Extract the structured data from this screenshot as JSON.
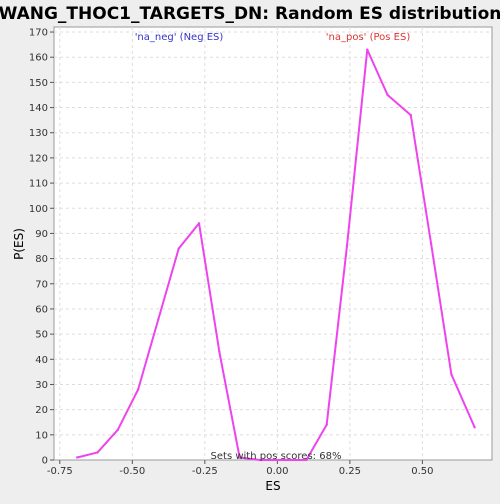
{
  "chart_data": {
    "type": "line",
    "title": "WANG_THOC1_TARGETS_DN: Random ES distribution",
    "xlabel": "ES",
    "ylabel": "P(ES)",
    "xlim": [
      -0.77,
      0.74
    ],
    "ylim": [
      0,
      172
    ],
    "x_ticks": [
      -0.75,
      -0.5,
      -0.25,
      0.0,
      0.25,
      0.5
    ],
    "x_tick_labels": [
      "-0.75",
      "-0.50",
      "-0.25",
      "0.00",
      "0.25",
      "0.50"
    ],
    "y_ticks": [
      0,
      10,
      20,
      30,
      40,
      50,
      60,
      70,
      80,
      90,
      100,
      110,
      120,
      130,
      140,
      150,
      160,
      170
    ],
    "y_tick_labels": [
      "0",
      "10",
      "20",
      "30",
      "40",
      "50",
      "60",
      "70",
      "80",
      "90",
      "100",
      "110",
      "120",
      "130",
      "140",
      "150",
      "160",
      "170"
    ],
    "grid": true,
    "legend": [
      {
        "label": "'na_neg' (Neg ES)",
        "color": "#3333cc",
        "placement": "top-left"
      },
      {
        "label": "'na_pos' (Pos ES)",
        "color": "#dd3333",
        "placement": "top-right"
      }
    ],
    "annotation": "Sets with pos scores: 68%",
    "series": [
      {
        "color": "#ee44ee",
        "x": [
          -0.69,
          -0.62,
          -0.55,
          -0.48,
          -0.41,
          -0.34,
          -0.27,
          -0.2,
          -0.13,
          -0.06,
          0.03,
          0.1,
          0.17,
          0.24,
          0.31,
          0.38,
          0.46,
          0.53,
          0.6,
          0.68
        ],
        "y": [
          1,
          3,
          12,
          28,
          56,
          84,
          94,
          43,
          1,
          0,
          0,
          0,
          14,
          85,
          163,
          145,
          137,
          86,
          34,
          13
        ]
      }
    ]
  }
}
